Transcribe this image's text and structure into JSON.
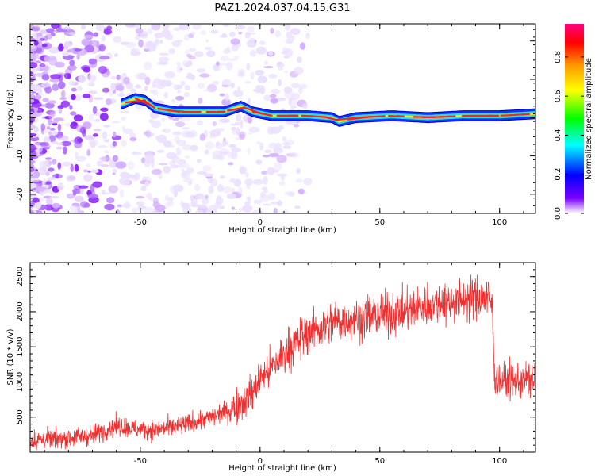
{
  "title": "PAZ1.2024.037.04.15.G31",
  "chart_data": [
    {
      "type": "heatmap",
      "xlabel": "Height of straight line (km)",
      "ylabel": "Frequency (Hz)",
      "xlim": [
        -96,
        115
      ],
      "ylim": [
        -25,
        24.5
      ],
      "xticks": [
        -50,
        0,
        50,
        100
      ],
      "yticks": [
        -20,
        -10,
        0,
        10,
        20
      ],
      "colorbar": {
        "label": "Normalized spectral amplitude",
        "range": [
          0,
          0.97
        ],
        "ticks": [
          0.0,
          0.2,
          0.4,
          0.6,
          0.8
        ],
        "colors": [
          "#ffffff",
          "#7a00ff",
          "#0000ff",
          "#00ffff",
          "#00ff00",
          "#ffff00",
          "#ff9900",
          "#ff0000",
          "#ff0080"
        ]
      },
      "ridge": {
        "start_km": -58,
        "points": [
          {
            "x": -58,
            "y": 3.5
          },
          {
            "x": -52,
            "y": 5
          },
          {
            "x": -48,
            "y": 4.5
          },
          {
            "x": -44,
            "y": 2.5
          },
          {
            "x": -35,
            "y": 1.5
          },
          {
            "x": -25,
            "y": 1.5
          },
          {
            "x": -15,
            "y": 1.5
          },
          {
            "x": -8,
            "y": 3
          },
          {
            "x": -3,
            "y": 1.5
          },
          {
            "x": 5,
            "y": 0.5
          },
          {
            "x": 20,
            "y": 0.5
          },
          {
            "x": 30,
            "y": 0
          },
          {
            "x": 33,
            "y": -1
          },
          {
            "x": 40,
            "y": 0
          },
          {
            "x": 55,
            "y": 0.5
          },
          {
            "x": 70,
            "y": 0
          },
          {
            "x": 85,
            "y": 0.5
          },
          {
            "x": 100,
            "y": 0.5
          },
          {
            "x": 115,
            "y": 1
          }
        ]
      }
    },
    {
      "type": "line",
      "xlabel": "Height of straight line (km)",
      "ylabel": "SNR (10 * v/v)",
      "xlim": [
        -96,
        115
      ],
      "ylim": [
        0,
        2700
      ],
      "xticks": [
        -50,
        0,
        50,
        100
      ],
      "yticks": [
        500,
        1000,
        1500,
        2000,
        2500
      ],
      "color": "#f03030",
      "trend": [
        {
          "x": -96,
          "y": 170
        },
        {
          "x": -80,
          "y": 200
        },
        {
          "x": -70,
          "y": 240
        },
        {
          "x": -60,
          "y": 380
        },
        {
          "x": -50,
          "y": 320
        },
        {
          "x": -40,
          "y": 330
        },
        {
          "x": -30,
          "y": 400
        },
        {
          "x": -20,
          "y": 500
        },
        {
          "x": -10,
          "y": 650
        },
        {
          "x": -3,
          "y": 850
        },
        {
          "x": 0,
          "y": 1050
        },
        {
          "x": 5,
          "y": 1200
        },
        {
          "x": 10,
          "y": 1400
        },
        {
          "x": 15,
          "y": 1550
        },
        {
          "x": 20,
          "y": 1700
        },
        {
          "x": 30,
          "y": 1850
        },
        {
          "x": 40,
          "y": 1900
        },
        {
          "x": 50,
          "y": 1950
        },
        {
          "x": 60,
          "y": 2000
        },
        {
          "x": 70,
          "y": 2100
        },
        {
          "x": 80,
          "y": 2150
        },
        {
          "x": 90,
          "y": 2200
        },
        {
          "x": 96,
          "y": 2200
        },
        {
          "x": 97,
          "y": 2000
        },
        {
          "x": 98,
          "y": 1050
        },
        {
          "x": 105,
          "y": 1000
        },
        {
          "x": 115,
          "y": 1050
        }
      ]
    }
  ]
}
